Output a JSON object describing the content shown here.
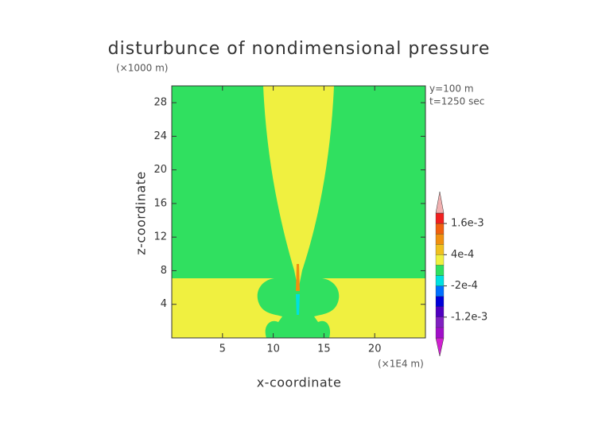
{
  "chart_data": {
    "type": "contour",
    "title": "disturbunce of nondimensional pressure",
    "y_unit_label": "(×1000 m)",
    "x_unit_label": "(×1E4 m)",
    "annotations": [
      "y=100 m",
      "t=1250 sec"
    ],
    "xlabel": "x-coordinate",
    "ylabel": "z-coordinate",
    "xlim": [
      0,
      25
    ],
    "xticks": [
      5,
      10,
      15,
      20
    ],
    "ylim": [
      0,
      30
    ],
    "yticks": [
      4,
      8,
      12,
      16,
      20,
      24,
      28
    ],
    "colorbar": {
      "levels": [
        -0.002,
        -0.0016,
        -0.0012,
        -0.0008,
        -0.0004,
        -0.0002,
        0,
        0.0002,
        0.0004,
        0.0008,
        0.0012,
        0.0016,
        0.002
      ],
      "colors": [
        "#d020d0",
        "#a010c8",
        "#8020c0",
        "#5000c0",
        "#0000d8",
        "#0070ff",
        "#00e0e0",
        "#30e060",
        "#f0f040",
        "#f0c020",
        "#f09010",
        "#f06010",
        "#f02020",
        "#f0b0b0"
      ],
      "ticks": [
        {
          "value": 0.0016,
          "label": "1.6e-3"
        },
        {
          "value": 0.0004,
          "label": "4e-4"
        },
        {
          "value": -0.0002,
          "label": "-2e-4"
        },
        {
          "value": -0.0012,
          "label": "-1.2e-3"
        }
      ]
    }
  }
}
